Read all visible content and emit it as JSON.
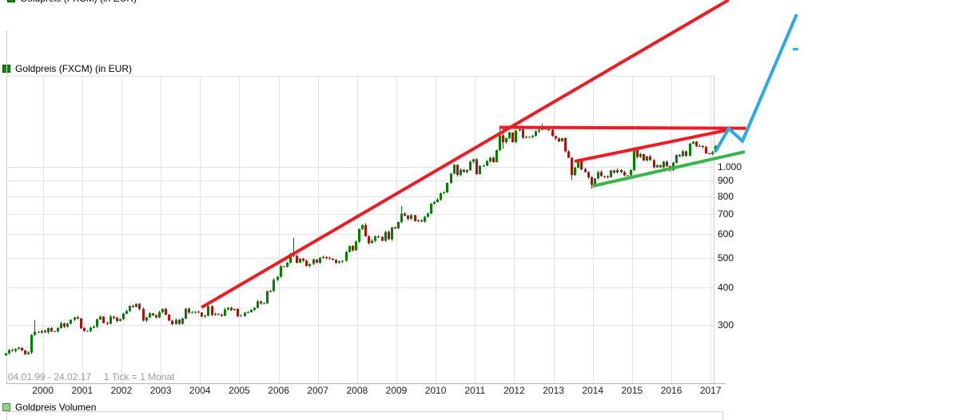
{
  "legend": {
    "label": "Goldpreis (FXCM) (in EUR)",
    "marker_color": "#009000",
    "marker_border": "#004d00"
  },
  "volume_legend": {
    "label": "Goldpreis Volumen",
    "marker_color": "#8ad98a",
    "marker_border": "#6b6b6b"
  },
  "footer": {
    "range": "04.01.99 - 24.02.17",
    "tick": "1 Tick = 1 Monat"
  },
  "colors": {
    "grid": "#e3e3e3",
    "border": "#cfcfcf",
    "axis_line": "#b5b5b5",
    "candle_up": "#008200",
    "candle_down": "#aa1414",
    "trend_red": "#ed1c24",
    "trend_green": "#39b54a",
    "trend_blue": "#29abe2"
  },
  "chart_data": {
    "type": "candlestick",
    "title": "Goldpreis (FXCM) (in EUR)",
    "interval": "1 Monat",
    "date_range": "04.01.99 - 24.02.17",
    "y_axis": {
      "scale": "log",
      "ticks": [
        {
          "label": "1.000",
          "value": 1000
        },
        {
          "label": "900",
          "value": 900
        },
        {
          "label": "800",
          "value": 800
        },
        {
          "label": "700",
          "value": 700
        },
        {
          "label": "600",
          "value": 600
        },
        {
          "label": "500",
          "value": 500
        },
        {
          "label": "400",
          "value": 400
        },
        {
          "label": "300",
          "value": 300
        }
      ],
      "grid_values": [
        2000,
        1000,
        900,
        800,
        700,
        600,
        500,
        400,
        300
      ],
      "ylim": [
        230,
        3600
      ]
    },
    "x_axis": {
      "start": "1999-01",
      "end": "2017-02",
      "tick_years": [
        2000,
        2001,
        2002,
        2003,
        2004,
        2005,
        2006,
        2007,
        2008,
        2009,
        2010,
        2011,
        2012,
        2013,
        2014,
        2015,
        2016,
        2017
      ]
    },
    "first_open": 238,
    "monthly_close": [
      242,
      248,
      246,
      250,
      252,
      247,
      240,
      243,
      278,
      285,
      283,
      287,
      284,
      293,
      286,
      286,
      293,
      304,
      296,
      303,
      312,
      318,
      315,
      293,
      287,
      287,
      294,
      296,
      313,
      320,
      305,
      303,
      320,
      317,
      309,
      314,
      327,
      334,
      347,
      344,
      352,
      339,
      310,
      318,
      328,
      323,
      318,
      331,
      339,
      325,
      310,
      302,
      312,
      303,
      315,
      340,
      330,
      330,
      332,
      330,
      320,
      322,
      346,
      324,
      327,
      325,
      322,
      338,
      342,
      336,
      339,
      321,
      322,
      330,
      331,
      337,
      342,
      359,
      354,
      354,
      389,
      388,
      423,
      433,
      469,
      467,
      482,
      515,
      508,
      482,
      497,
      489,
      470,
      477,
      494,
      482,
      500,
      503,
      500,
      497,
      492,
      482,
      486,
      489,
      523,
      548,
      530,
      566,
      623,
      642,
      590,
      560,
      570,
      590,
      587,
      570,
      610,
      577,
      630,
      627,
      657,
      700,
      690,
      673,
      692,
      662,
      665,
      660,
      684,
      700,
      755,
      766,
      780,
      818,
      823,
      885,
      950,
      1014,
      940,
      980,
      962,
      976,
      1040,
      1060,
      947,
      1010,
      1010,
      1045,
      1073,
      1037,
      1135,
      1270,
      1206,
      1245,
      1300,
      1208,
      1318,
      1330,
      1250,
      1258,
      1255,
      1266,
      1310,
      1327,
      1360,
      1330,
      1325,
      1265,
      1240,
      1215,
      1245,
      1125,
      1073,
      940,
      995,
      1055,
      982,
      962,
      923,
      872,
      917,
      962,
      932,
      930,
      923,
      972,
      958,
      977,
      962,
      937,
      938,
      975,
      1150,
      1078,
      1103,
      1050,
      1082,
      1053,
      998,
      1013,
      996,
      1040,
      1005,
      975,
      1030,
      1095,
      1085,
      1127,
      1090,
      1194,
      1210,
      1172,
      1172,
      1163,
      1110,
      1102,
      1120,
      1170
    ],
    "wick_overrides": {
      "9": [
        312,
        null
      ],
      "88": [
        582,
        null
      ],
      "110": [
        652,
        null
      ],
      "121": [
        742,
        null
      ],
      "137": [
        1020,
        null
      ],
      "151": [
        1345,
        null
      ],
      "152": [
        1362,
        1150
      ],
      "164": [
        1388,
        null
      ],
      "165": [
        1362,
        null
      ],
      "173": [
        null,
        905
      ],
      "179": [
        null,
        848
      ],
      "180": [
        null,
        858
      ],
      "192": [
        1162,
        null
      ]
    },
    "trendlines": [
      {
        "name": "long-uptrend-line",
        "color": "#ed1c24",
        "width": 4,
        "points": [
          [
            2004.04,
            343
          ],
          [
            2017.46,
            3565
          ]
        ]
      },
      {
        "name": "resistance-line",
        "color": "#ed1c24",
        "width": 4,
        "points": [
          [
            2011.62,
            1351
          ],
          [
            2017.9,
            1342
          ]
        ]
      },
      {
        "name": "short-uptrend-line",
        "color": "#ed1c24",
        "width": 4,
        "points": [
          [
            2013.54,
            1043
          ],
          [
            2017.46,
            1327
          ]
        ]
      },
      {
        "name": "support-line",
        "color": "#39b54a",
        "width": 4,
        "points": [
          [
            2014.0,
            864
          ],
          [
            2017.87,
            1122
          ]
        ]
      },
      {
        "name": "projection-line",
        "color": "#29abe2",
        "width": 4,
        "points": [
          [
            2017.12,
            1122
          ],
          [
            2017.46,
            1339
          ],
          [
            2017.81,
            1218
          ],
          [
            2019.19,
            3195
          ]
        ]
      },
      {
        "name": "projection-target-dash",
        "color": "#29abe2",
        "width": 3,
        "points": [
          [
            2019.09,
            2450
          ],
          [
            2019.23,
            2450
          ]
        ]
      }
    ]
  }
}
